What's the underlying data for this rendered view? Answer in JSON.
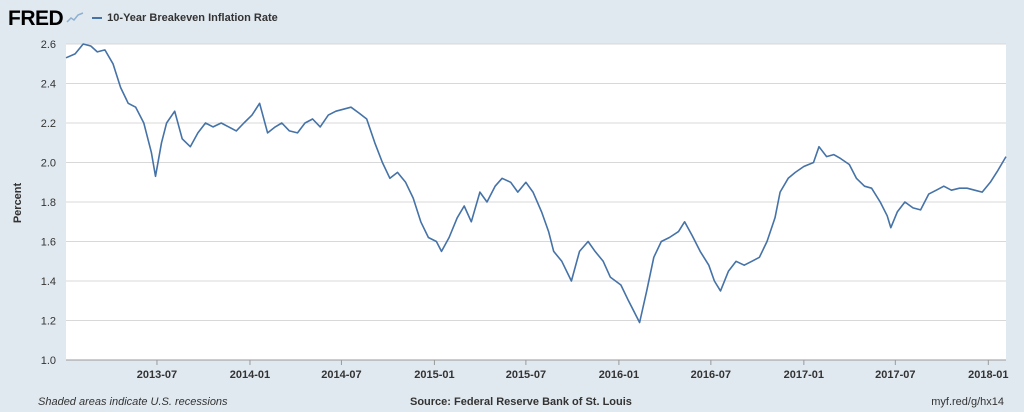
{
  "header": {
    "logo": "FRED",
    "spark_icon": "sparkline-icon",
    "legend_label": "10-Year Breakeven Inflation Rate"
  },
  "footer": {
    "recession_note": "Shaded areas indicate U.S. recessions",
    "source": "Source: Federal Reserve Bank of St. Louis",
    "short_url": "myf.red/g/hx14"
  },
  "colors": {
    "background": "#e1e9f0",
    "plot_bg": "#ffffff",
    "series": "#4572a7",
    "grid": "#d8d8d8"
  },
  "chart_data": {
    "type": "line",
    "title": "",
    "xlabel": "",
    "ylabel": "Percent",
    "ylim": [
      1.0,
      2.6
    ],
    "y_ticks": [
      "1.0",
      "1.2",
      "1.4",
      "1.6",
      "1.8",
      "2.0",
      "2.2",
      "2.4",
      "2.6"
    ],
    "xlim": [
      "2013-01-02",
      "2018-02-05"
    ],
    "x_ticks": [
      "2013-07",
      "2014-01",
      "2014-07",
      "2015-01",
      "2015-07",
      "2016-01",
      "2016-07",
      "2017-01",
      "2017-07",
      "2018-01"
    ],
    "grid": "horizontal",
    "series": [
      {
        "name": "10-Year Breakeven Inflation Rate",
        "x": [
          "2013-01-02",
          "2013-01-20",
          "2013-02-05",
          "2013-02-20",
          "2013-03-05",
          "2013-03-20",
          "2013-04-05",
          "2013-04-20",
          "2013-05-05",
          "2013-05-20",
          "2013-06-05",
          "2013-06-20",
          "2013-06-28",
          "2013-07-10",
          "2013-07-20",
          "2013-08-05",
          "2013-08-20",
          "2013-09-05",
          "2013-09-20",
          "2013-10-05",
          "2013-10-20",
          "2013-11-05",
          "2013-11-20",
          "2013-12-05",
          "2013-12-20",
          "2014-01-05",
          "2014-01-20",
          "2014-02-05",
          "2014-02-20",
          "2014-03-05",
          "2014-03-20",
          "2014-04-05",
          "2014-04-20",
          "2014-05-05",
          "2014-05-20",
          "2014-06-05",
          "2014-06-20",
          "2014-07-05",
          "2014-07-20",
          "2014-08-05",
          "2014-08-20",
          "2014-09-05",
          "2014-09-20",
          "2014-10-05",
          "2014-10-20",
          "2014-11-05",
          "2014-11-20",
          "2014-12-05",
          "2014-12-20",
          "2015-01-05",
          "2015-01-15",
          "2015-01-30",
          "2015-02-15",
          "2015-03-01",
          "2015-03-15",
          "2015-04-01",
          "2015-04-15",
          "2015-05-01",
          "2015-05-15",
          "2015-06-01",
          "2015-06-15",
          "2015-07-01",
          "2015-07-15",
          "2015-08-01",
          "2015-08-15",
          "2015-08-25",
          "2015-09-10",
          "2015-09-29",
          "2015-10-15",
          "2015-11-01",
          "2015-11-15",
          "2015-12-01",
          "2015-12-15",
          "2016-01-05",
          "2016-01-20",
          "2016-02-05",
          "2016-02-11",
          "2016-02-25",
          "2016-03-10",
          "2016-03-25",
          "2016-04-10",
          "2016-04-28",
          "2016-05-10",
          "2016-05-25",
          "2016-06-10",
          "2016-06-27",
          "2016-07-08",
          "2016-07-20",
          "2016-08-05",
          "2016-08-20",
          "2016-09-05",
          "2016-09-20",
          "2016-10-05",
          "2016-10-20",
          "2016-11-05",
          "2016-11-15",
          "2016-12-01",
          "2016-12-15",
          "2017-01-01",
          "2017-01-20",
          "2017-01-31",
          "2017-02-15",
          "2017-03-01",
          "2017-03-15",
          "2017-04-01",
          "2017-04-15",
          "2017-05-01",
          "2017-05-15",
          "2017-06-01",
          "2017-06-15",
          "2017-06-22",
          "2017-07-05",
          "2017-07-20",
          "2017-08-05",
          "2017-08-20",
          "2017-09-05",
          "2017-09-20",
          "2017-10-05",
          "2017-10-20",
          "2017-11-05",
          "2017-11-20",
          "2017-12-05",
          "2017-12-20",
          "2018-01-05",
          "2018-01-20",
          "2018-02-05"
        ],
        "values": [
          2.53,
          2.55,
          2.6,
          2.59,
          2.56,
          2.57,
          2.5,
          2.38,
          2.3,
          2.28,
          2.2,
          2.05,
          1.93,
          2.1,
          2.2,
          2.26,
          2.12,
          2.08,
          2.15,
          2.2,
          2.18,
          2.2,
          2.18,
          2.16,
          2.2,
          2.24,
          2.3,
          2.15,
          2.18,
          2.2,
          2.16,
          2.15,
          2.2,
          2.22,
          2.18,
          2.24,
          2.26,
          2.27,
          2.28,
          2.25,
          2.22,
          2.1,
          2.0,
          1.92,
          1.95,
          1.9,
          1.82,
          1.7,
          1.62,
          1.6,
          1.55,
          1.62,
          1.72,
          1.78,
          1.7,
          1.85,
          1.8,
          1.88,
          1.92,
          1.9,
          1.85,
          1.9,
          1.85,
          1.75,
          1.65,
          1.55,
          1.5,
          1.4,
          1.55,
          1.6,
          1.55,
          1.5,
          1.42,
          1.38,
          1.3,
          1.22,
          1.19,
          1.35,
          1.52,
          1.6,
          1.62,
          1.65,
          1.7,
          1.63,
          1.55,
          1.48,
          1.4,
          1.35,
          1.45,
          1.5,
          1.48,
          1.5,
          1.52,
          1.6,
          1.72,
          1.85,
          1.92,
          1.95,
          1.98,
          2.0,
          2.08,
          2.03,
          2.04,
          2.02,
          1.99,
          1.92,
          1.88,
          1.87,
          1.8,
          1.73,
          1.67,
          1.75,
          1.8,
          1.77,
          1.76,
          1.84,
          1.86,
          1.88,
          1.86,
          1.87,
          1.87,
          1.86,
          1.85,
          1.9,
          1.96,
          2.03
        ]
      }
    ]
  }
}
